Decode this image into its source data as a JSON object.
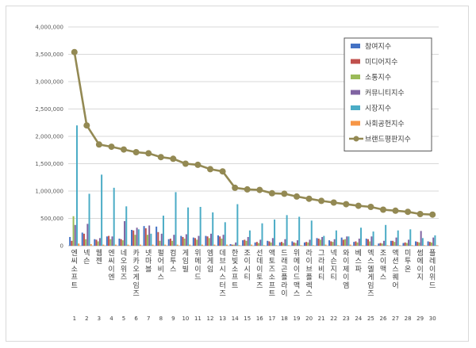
{
  "chart_data": {
    "type": "bar",
    "ylim": [
      0,
      4000000
    ],
    "y_ticks": [
      "0",
      "500,000",
      "1,000,000",
      "1,500,000",
      "2,000,000",
      "2,500,000",
      "3,000,000",
      "3,500,000",
      "4,000,000"
    ],
    "numbers": [
      "1",
      "2",
      "3",
      "4",
      "5",
      "6",
      "7",
      "8",
      "9",
      "10",
      "11",
      "12",
      "13",
      "14",
      "15",
      "16",
      "17",
      "18",
      "19",
      "20",
      "21",
      "22",
      "23",
      "24",
      "25",
      "26",
      "27",
      "28",
      "29",
      "30"
    ],
    "categories": [
      "엔씨소프트",
      "넥슨",
      "웹젠",
      "엔씨이엔",
      "네오위즈",
      "카카오게임즈",
      "넷마블",
      "펄어비스",
      "컴투스",
      "게임빌",
      "위메이드",
      "엠게임",
      "데브시스터즈",
      "한빛소프트",
      "조이시티",
      "선데이토즈",
      "액토즈소프트",
      "드래곤플라이",
      "위메이드맥스",
      "라이브플렉스",
      "그라비티",
      "넥슨지티",
      "와이제이엠",
      "베스파",
      "엑스엘게임즈",
      "조이맥스",
      "액션스퀘어",
      "미투온",
      "썸에이지",
      "플레이위드"
    ],
    "series": [
      {
        "name": "참여지수",
        "color": "#4472c4",
        "values": [
          160000,
          240000,
          120000,
          170000,
          130000,
          290000,
          360000,
          350000,
          120000,
          180000,
          150000,
          180000,
          190000,
          30000,
          100000,
          60000,
          90000,
          60000,
          80000,
          60000,
          140000,
          100000,
          150000,
          70000,
          130000,
          40000,
          90000,
          50000,
          80000,
          80000
        ]
      },
      {
        "name": "미디어지수",
        "color": "#c0504d",
        "values": [
          90000,
          220000,
          110000,
          180000,
          120000,
          280000,
          320000,
          250000,
          130000,
          160000,
          140000,
          170000,
          170000,
          20000,
          110000,
          70000,
          80000,
          70000,
          60000,
          70000,
          130000,
          80000,
          110000,
          80000,
          120000,
          50000,
          90000,
          60000,
          70000,
          70000
        ]
      },
      {
        "name": "소통지수",
        "color": "#9bbb59",
        "values": [
          540000,
          120000,
          80000,
          120000,
          100000,
          200000,
          200000,
          90000,
          90000,
          130000,
          110000,
          140000,
          130000,
          20000,
          90000,
          50000,
          60000,
          50000,
          50000,
          60000,
          110000,
          70000,
          120000,
          60000,
          80000,
          40000,
          70000,
          50000,
          60000,
          60000
        ]
      },
      {
        "name": "커뮤니티지수",
        "color": "#8064a2",
        "values": [
          380000,
          400000,
          140000,
          170000,
          450000,
          330000,
          370000,
          220000,
          200000,
          210000,
          180000,
          220000,
          200000,
          60000,
          160000,
          110000,
          140000,
          120000,
          100000,
          110000,
          160000,
          120000,
          170000,
          130000,
          170000,
          90000,
          150000,
          110000,
          270000,
          150000
        ]
      },
      {
        "name": "시장지수",
        "color": "#4bacc6",
        "values": [
          2200000,
          950000,
          1300000,
          1060000,
          720000,
          300000,
          220000,
          550000,
          980000,
          700000,
          710000,
          610000,
          430000,
          760000,
          280000,
          410000,
          480000,
          560000,
          530000,
          460000,
          180000,
          280000,
          170000,
          330000,
          260000,
          380000,
          280000,
          300000,
          140000,
          190000
        ]
      },
      {
        "name": "사회공헌지수",
        "color": "#f79646",
        "values": [
          40000,
          30000,
          20000,
          20000,
          20000,
          20000,
          20000,
          20000,
          20000,
          20000,
          20000,
          20000,
          20000,
          10000,
          20000,
          10000,
          10000,
          10000,
          10000,
          10000,
          20000,
          10000,
          20000,
          10000,
          10000,
          10000,
          10000,
          10000,
          10000,
          10000
        ]
      }
    ],
    "line": {
      "name": "브랜드평판지수",
      "color": "#938953",
      "values": [
        3540000,
        2200000,
        1850000,
        1810000,
        1760000,
        1710000,
        1690000,
        1620000,
        1590000,
        1500000,
        1480000,
        1400000,
        1360000,
        1060000,
        1030000,
        1020000,
        960000,
        950000,
        900000,
        860000,
        820000,
        790000,
        760000,
        730000,
        710000,
        660000,
        640000,
        620000,
        580000,
        570000
      ]
    },
    "legend_position": "top-right",
    "grid": true
  }
}
